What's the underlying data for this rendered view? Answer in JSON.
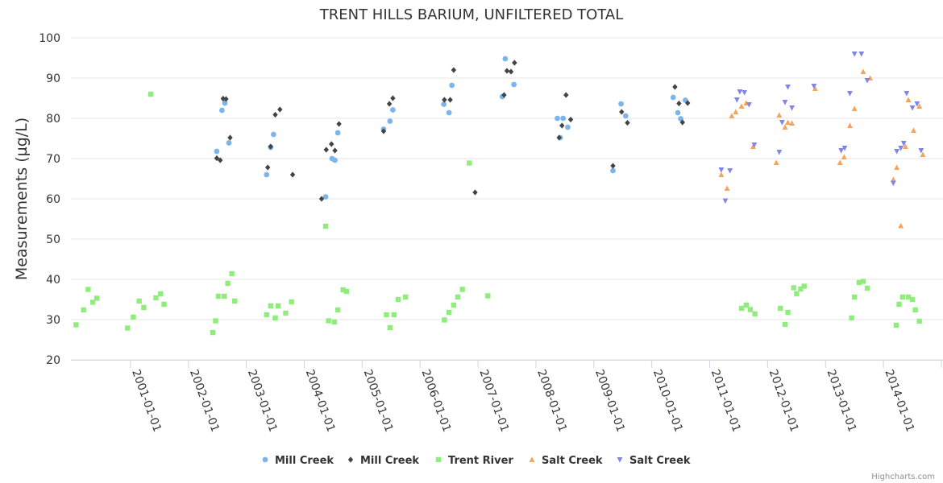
{
  "chart_data": {
    "type": "scatter",
    "title": "TRENT HILLS BARIUM, UNFILTERED TOTAL",
    "ylabel": "Measurements (µg/L)",
    "xlabel": "",
    "ylim": [
      20,
      100
    ],
    "yticks": [
      20,
      30,
      40,
      50,
      60,
      70,
      80,
      90,
      100
    ],
    "xlim": [
      2000.0,
      2015.0
    ],
    "xticks": [
      {
        "value": 2001.0,
        "label": "2001-01-01"
      },
      {
        "value": 2002.0,
        "label": "2002-01-01"
      },
      {
        "value": 2003.0,
        "label": "2003-01-01"
      },
      {
        "value": 2004.0,
        "label": "2004-01-01"
      },
      {
        "value": 2005.0,
        "label": "2005-01-01"
      },
      {
        "value": 2006.0,
        "label": "2006-01-01"
      },
      {
        "value": 2007.0,
        "label": "2007-01-01"
      },
      {
        "value": 2008.0,
        "label": "2008-01-01"
      },
      {
        "value": 2009.0,
        "label": "2009-01-01"
      },
      {
        "value": 2010.0,
        "label": "2010-01-01"
      },
      {
        "value": 2011.0,
        "label": "2011-01-01"
      },
      {
        "value": 2012.0,
        "label": "2012-01-01"
      },
      {
        "value": 2013.0,
        "label": "2013-01-01"
      },
      {
        "value": 2014.0,
        "label": "2014-01-01"
      },
      {
        "value": 2015.0,
        "label": "2015-01-01"
      }
    ],
    "legend_position": "bottom-center",
    "credits": "Highcharts.com",
    "series": [
      {
        "name": "Mill Creek",
        "symbol": "circle",
        "color": "#7cb5ec",
        "points": [
          [
            2002.49,
            71.8
          ],
          [
            2002.58,
            82.0
          ],
          [
            2002.63,
            83.8
          ],
          [
            2002.7,
            73.9
          ],
          [
            2003.35,
            66.0
          ],
          [
            2003.42,
            72.8
          ],
          [
            2003.47,
            76.0
          ],
          [
            2004.37,
            60.5
          ],
          [
            2004.48,
            70.0
          ],
          [
            2004.53,
            69.6
          ],
          [
            2004.58,
            76.4
          ],
          [
            2005.37,
            77.3
          ],
          [
            2005.48,
            79.3
          ],
          [
            2005.53,
            82.1
          ],
          [
            2006.41,
            83.5
          ],
          [
            2006.5,
            81.4
          ],
          [
            2006.55,
            88.2
          ],
          [
            2007.42,
            85.4
          ],
          [
            2007.47,
            94.8
          ],
          [
            2007.62,
            88.4
          ],
          [
            2008.37,
            80.0
          ],
          [
            2008.42,
            75.2
          ],
          [
            2008.47,
            80.0
          ],
          [
            2008.55,
            77.8
          ],
          [
            2009.33,
            67.0
          ],
          [
            2009.47,
            83.6
          ],
          [
            2009.55,
            80.6
          ],
          [
            2010.37,
            85.2
          ],
          [
            2010.45,
            81.4
          ],
          [
            2010.5,
            79.9
          ],
          [
            2010.58,
            84.5
          ]
        ]
      },
      {
        "name": "Mill Creek",
        "symbol": "diamond",
        "color": "#434348",
        "points": [
          [
            2002.49,
            70.1
          ],
          [
            2002.55,
            69.6
          ],
          [
            2002.6,
            84.9
          ],
          [
            2002.65,
            84.8
          ],
          [
            2002.72,
            75.2
          ],
          [
            2003.37,
            67.8
          ],
          [
            2003.42,
            73.0
          ],
          [
            2003.5,
            80.9
          ],
          [
            2003.58,
            82.2
          ],
          [
            2003.8,
            66.0
          ],
          [
            2004.3,
            60.0
          ],
          [
            2004.38,
            72.2
          ],
          [
            2004.47,
            73.6
          ],
          [
            2004.53,
            72.0
          ],
          [
            2004.6,
            78.6
          ],
          [
            2005.37,
            76.8
          ],
          [
            2005.47,
            83.6
          ],
          [
            2005.53,
            85.0
          ],
          [
            2006.42,
            84.6
          ],
          [
            2006.52,
            84.6
          ],
          [
            2006.58,
            92.0
          ],
          [
            2006.95,
            61.6
          ],
          [
            2007.45,
            85.8
          ],
          [
            2007.5,
            91.8
          ],
          [
            2007.57,
            91.6
          ],
          [
            2007.63,
            93.8
          ],
          [
            2008.4,
            75.2
          ],
          [
            2008.45,
            78.2
          ],
          [
            2008.52,
            85.8
          ],
          [
            2008.6,
            79.7
          ],
          [
            2009.33,
            68.2
          ],
          [
            2009.48,
            81.6
          ],
          [
            2009.58,
            78.9
          ],
          [
            2010.4,
            87.8
          ],
          [
            2010.47,
            83.7
          ],
          [
            2010.53,
            79.0
          ],
          [
            2010.62,
            83.8
          ]
        ]
      },
      {
        "name": "Trent River",
        "symbol": "square",
        "color": "#90ed7d",
        "points": [
          [
            2000.06,
            28.7
          ],
          [
            2000.19,
            32.4
          ],
          [
            2000.27,
            37.5
          ],
          [
            2000.35,
            34.3
          ],
          [
            2000.42,
            35.3
          ],
          [
            2000.95,
            27.9
          ],
          [
            2001.05,
            30.6
          ],
          [
            2001.15,
            34.6
          ],
          [
            2001.23,
            33.0
          ],
          [
            2001.35,
            86.0
          ],
          [
            2001.44,
            35.4
          ],
          [
            2001.52,
            36.4
          ],
          [
            2001.58,
            33.8
          ],
          [
            2002.42,
            26.8
          ],
          [
            2002.47,
            29.7
          ],
          [
            2002.52,
            35.8
          ],
          [
            2002.62,
            35.8
          ],
          [
            2002.68,
            39.0
          ],
          [
            2002.75,
            41.4
          ],
          [
            2002.8,
            34.6
          ],
          [
            2003.35,
            31.2
          ],
          [
            2003.42,
            33.4
          ],
          [
            2003.5,
            30.4
          ],
          [
            2003.55,
            33.4
          ],
          [
            2003.68,
            31.6
          ],
          [
            2003.78,
            34.4
          ],
          [
            2004.37,
            53.2
          ],
          [
            2004.42,
            29.7
          ],
          [
            2004.52,
            29.4
          ],
          [
            2004.58,
            32.4
          ],
          [
            2004.67,
            37.4
          ],
          [
            2004.73,
            37.0
          ],
          [
            2005.42,
            31.2
          ],
          [
            2005.48,
            28.0
          ],
          [
            2005.55,
            31.2
          ],
          [
            2005.62,
            35.0
          ],
          [
            2005.75,
            35.6
          ],
          [
            2006.42,
            29.9
          ],
          [
            2006.5,
            31.8
          ],
          [
            2006.58,
            33.6
          ],
          [
            2006.65,
            35.6
          ],
          [
            2006.73,
            37.5
          ],
          [
            2006.85,
            68.9
          ],
          [
            2007.17,
            35.9
          ],
          [
            2011.55,
            32.8
          ],
          [
            2011.63,
            33.6
          ],
          [
            2011.7,
            32.5
          ],
          [
            2011.78,
            31.4
          ],
          [
            2012.22,
            32.8
          ],
          [
            2012.3,
            28.8
          ],
          [
            2012.35,
            31.8
          ],
          [
            2012.45,
            37.9
          ],
          [
            2012.5,
            36.4
          ],
          [
            2012.57,
            37.6
          ],
          [
            2012.63,
            38.3
          ],
          [
            2013.45,
            30.4
          ],
          [
            2013.5,
            35.6
          ],
          [
            2013.58,
            39.2
          ],
          [
            2013.65,
            39.5
          ],
          [
            2013.72,
            37.8
          ],
          [
            2014.22,
            28.6
          ],
          [
            2014.27,
            33.8
          ],
          [
            2014.33,
            35.6
          ],
          [
            2014.43,
            35.6
          ],
          [
            2014.5,
            35.0
          ],
          [
            2014.55,
            32.4
          ],
          [
            2014.62,
            29.6
          ]
        ]
      },
      {
        "name": "Salt Creek",
        "symbol": "triangle",
        "color": "#f7a35c",
        "points": [
          [
            2011.2,
            66.0
          ],
          [
            2011.3,
            62.6
          ],
          [
            2011.38,
            80.6
          ],
          [
            2011.45,
            81.6
          ],
          [
            2011.55,
            83.0
          ],
          [
            2011.63,
            83.8
          ],
          [
            2011.75,
            73.0
          ],
          [
            2012.15,
            69.0
          ],
          [
            2012.2,
            80.8
          ],
          [
            2012.3,
            77.8
          ],
          [
            2012.35,
            79.0
          ],
          [
            2012.42,
            78.8
          ],
          [
            2012.82,
            87.4
          ],
          [
            2013.25,
            69.0
          ],
          [
            2013.32,
            70.4
          ],
          [
            2013.42,
            78.2
          ],
          [
            2013.5,
            82.4
          ],
          [
            2013.65,
            91.6
          ],
          [
            2013.77,
            90.0
          ],
          [
            2014.17,
            64.8
          ],
          [
            2014.23,
            67.8
          ],
          [
            2014.3,
            53.3
          ],
          [
            2014.38,
            73.0
          ],
          [
            2014.43,
            84.6
          ],
          [
            2014.52,
            77.0
          ],
          [
            2014.62,
            83.0
          ],
          [
            2014.68,
            71.0
          ]
        ]
      },
      {
        "name": "Salt Creek",
        "symbol": "triangle-down",
        "color": "#8085e9",
        "points": [
          [
            2011.2,
            67.2
          ],
          [
            2011.27,
            59.5
          ],
          [
            2011.35,
            67.0
          ],
          [
            2011.47,
            84.6
          ],
          [
            2011.52,
            86.6
          ],
          [
            2011.6,
            86.4
          ],
          [
            2011.68,
            83.4
          ],
          [
            2011.77,
            73.4
          ],
          [
            2012.2,
            71.6
          ],
          [
            2012.25,
            79.0
          ],
          [
            2012.3,
            84.0
          ],
          [
            2012.35,
            87.8
          ],
          [
            2012.42,
            82.6
          ],
          [
            2012.8,
            88.0
          ],
          [
            2013.27,
            72.0
          ],
          [
            2013.33,
            72.6
          ],
          [
            2013.42,
            86.2
          ],
          [
            2013.5,
            96.0
          ],
          [
            2013.62,
            96.0
          ],
          [
            2013.72,
            89.4
          ],
          [
            2014.17,
            63.9
          ],
          [
            2014.23,
            71.8
          ],
          [
            2014.3,
            72.6
          ],
          [
            2014.35,
            73.8
          ],
          [
            2014.4,
            86.2
          ],
          [
            2014.5,
            82.6
          ],
          [
            2014.58,
            83.6
          ],
          [
            2014.65,
            72.0
          ]
        ]
      }
    ]
  }
}
